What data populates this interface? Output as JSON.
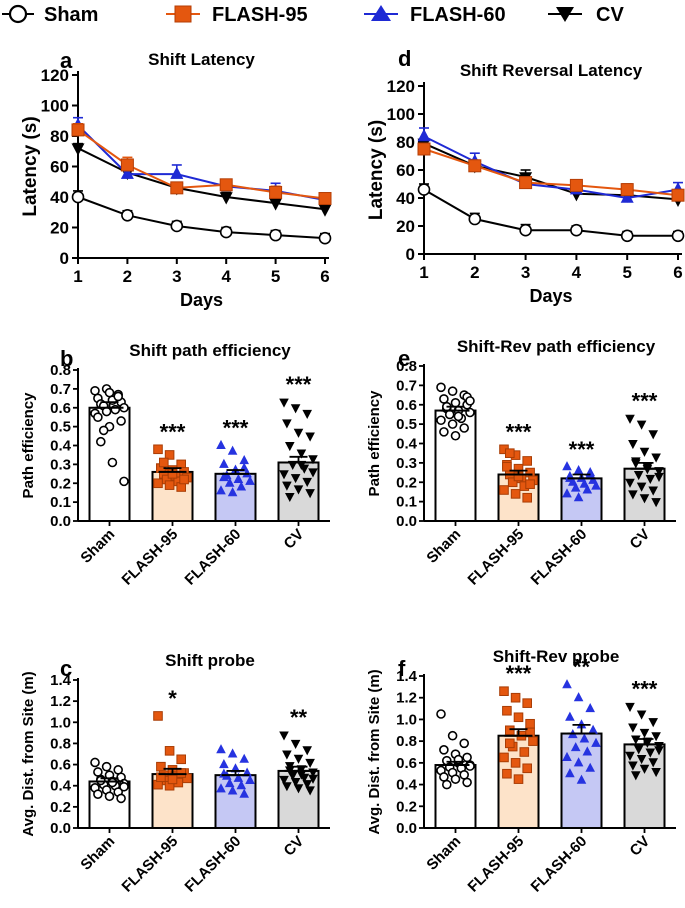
{
  "legend": [
    {
      "name": "Sham",
      "color": "#000000",
      "fill": "#ffffff",
      "marker": "circle"
    },
    {
      "name": "FLASH-95",
      "color": "#e4570f",
      "fill": "#e4570f",
      "marker": "square"
    },
    {
      "name": "FLASH-60",
      "color": "#1f2ad4",
      "fill": "#1f2ad4",
      "marker": "triangle"
    },
    {
      "name": "CV",
      "color": "#000000",
      "fill": "#000000",
      "marker": "triangle-down"
    }
  ],
  "chart_data": [
    {
      "panel": "a",
      "type": "line",
      "title": "Shift Latency",
      "xlabel": "Days",
      "ylabel": "Latency (s)",
      "x": [
        1,
        2,
        3,
        4,
        5,
        6
      ],
      "xlim": [
        1,
        6
      ],
      "ylim": [
        0,
        120
      ],
      "yticks": [
        0,
        20,
        40,
        60,
        80,
        100,
        120
      ],
      "series": [
        {
          "name": "Sham",
          "values": [
            40,
            28,
            21,
            17,
            15,
            13
          ],
          "err": [
            4,
            3,
            3,
            3,
            3,
            3
          ]
        },
        {
          "name": "FLASH-95",
          "values": [
            84,
            61,
            46,
            48,
            43,
            39
          ],
          "err": [
            4,
            5,
            3,
            3,
            4,
            3
          ]
        },
        {
          "name": "FLASH-60",
          "values": [
            87,
            55,
            55,
            47,
            44,
            38
          ],
          "err": [
            5,
            3,
            6,
            4,
            5,
            3
          ]
        },
        {
          "name": "CV",
          "values": [
            72,
            56,
            46,
            40,
            36,
            32
          ],
          "err": [
            3,
            3,
            3,
            3,
            3,
            3
          ]
        }
      ]
    },
    {
      "panel": "d",
      "type": "line",
      "title": "Shift Reversal Latency",
      "xlabel": "Days",
      "ylabel": "Latency (s)",
      "x": [
        1,
        2,
        3,
        4,
        5,
        6
      ],
      "xlim": [
        1,
        6
      ],
      "ylim": [
        0,
        120
      ],
      "yticks": [
        0,
        20,
        40,
        60,
        80,
        100,
        120
      ],
      "series": [
        {
          "name": "Sham",
          "values": [
            46,
            25,
            17,
            17,
            13,
            13
          ],
          "err": [
            4,
            4,
            4,
            3,
            3,
            3
          ]
        },
        {
          "name": "FLASH-95",
          "values": [
            75,
            63,
            51,
            49,
            46,
            42
          ],
          "err": [
            3,
            4,
            4,
            4,
            4,
            3
          ]
        },
        {
          "name": "FLASH-60",
          "values": [
            84,
            66,
            50,
            46,
            40,
            46
          ],
          "err": [
            6,
            6,
            5,
            4,
            4,
            5
          ]
        },
        {
          "name": "CV",
          "values": [
            79,
            63,
            55,
            43,
            42,
            39
          ],
          "err": [
            3,
            3,
            5,
            3,
            3,
            3
          ]
        }
      ]
    },
    {
      "panel": "b",
      "type": "bar",
      "title": "Shift path efficiency",
      "ylabel": "Path efficiency",
      "ylim": [
        0,
        0.8
      ],
      "yticks": [
        0,
        0.1,
        0.2,
        0.3,
        0.4,
        0.5,
        0.6,
        0.7,
        0.8
      ],
      "categories": [
        "Sham",
        "FLASH-95",
        "FLASH-60",
        "CV"
      ],
      "values": [
        0.6,
        0.26,
        0.25,
        0.31
      ],
      "err": [
        0.03,
        0.02,
        0.02,
        0.03
      ],
      "significance": [
        "",
        "***",
        "***",
        "***"
      ],
      "points": [
        [
          0.69,
          0.7,
          0.67,
          0.65,
          0.68,
          0.63,
          0.62,
          0.64,
          0.6,
          0.61,
          0.59,
          0.57,
          0.58,
          0.66,
          0.55,
          0.5,
          0.53,
          0.42,
          0.31,
          0.21,
          0.48
        ],
        [
          0.38,
          0.35,
          0.3,
          0.28,
          0.27,
          0.26,
          0.25,
          0.24,
          0.23,
          0.22,
          0.21,
          0.2,
          0.19,
          0.18,
          0.28,
          0.25,
          0.22,
          0.31
        ],
        [
          0.4,
          0.37,
          0.32,
          0.3,
          0.27,
          0.25,
          0.24,
          0.22,
          0.21,
          0.2,
          0.18,
          0.16,
          0.15,
          0.28,
          0.23
        ],
        [
          0.63,
          0.6,
          0.57,
          0.52,
          0.47,
          0.45,
          0.4,
          0.36,
          0.33,
          0.3,
          0.28,
          0.25,
          0.23,
          0.21,
          0.19,
          0.17,
          0.15,
          0.13,
          0.3,
          0.26
        ]
      ]
    },
    {
      "panel": "e",
      "type": "bar",
      "title": "Shift-Rev path efficiency",
      "ylabel": "Path efficiency",
      "ylim": [
        0,
        0.8
      ],
      "yticks": [
        0,
        0.1,
        0.2,
        0.3,
        0.4,
        0.5,
        0.6,
        0.7,
        0.8
      ],
      "categories": [
        "Sham",
        "FLASH-95",
        "FLASH-60",
        "CV"
      ],
      "values": [
        0.57,
        0.24,
        0.22,
        0.27
      ],
      "err": [
        0.02,
        0.02,
        0.02,
        0.03
      ],
      "significance": [
        "",
        "***",
        "***",
        "***"
      ],
      "points": [
        [
          0.69,
          0.67,
          0.65,
          0.63,
          0.61,
          0.6,
          0.58,
          0.57,
          0.56,
          0.55,
          0.53,
          0.52,
          0.5,
          0.48,
          0.46,
          0.44,
          0.64,
          0.59,
          0.54,
          0.62
        ],
        [
          0.37,
          0.34,
          0.31,
          0.29,
          0.27,
          0.25,
          0.24,
          0.22,
          0.21,
          0.2,
          0.18,
          0.16,
          0.14,
          0.12,
          0.28,
          0.23,
          0.19,
          0.35
        ],
        [
          0.28,
          0.26,
          0.24,
          0.23,
          0.22,
          0.21,
          0.2,
          0.19,
          0.18,
          0.17,
          0.16,
          0.14,
          0.12,
          0.25,
          0.22
        ],
        [
          0.53,
          0.5,
          0.45,
          0.4,
          0.36,
          0.33,
          0.3,
          0.28,
          0.26,
          0.24,
          0.22,
          0.2,
          0.18,
          0.16,
          0.14,
          0.12,
          0.1,
          0.31,
          0.27,
          0.23
        ]
      ]
    },
    {
      "panel": "c",
      "type": "bar",
      "title": "Shift probe",
      "ylabel": "Avg. Dist. from Site (m)",
      "ylim": [
        0,
        1.4
      ],
      "yticks": [
        0,
        0.2,
        0.4,
        0.6,
        0.8,
        1.0,
        1.2,
        1.4
      ],
      "categories": [
        "Sham",
        "FLASH-95",
        "FLASH-60",
        "CV"
      ],
      "values": [
        0.44,
        0.51,
        0.5,
        0.54
      ],
      "err": [
        0.03,
        0.05,
        0.04,
        0.04
      ],
      "significance": [
        "",
        "*",
        "",
        "**"
      ],
      "points": [
        [
          0.62,
          0.58,
          0.55,
          0.53,
          0.5,
          0.48,
          0.46,
          0.44,
          0.42,
          0.41,
          0.4,
          0.38,
          0.36,
          0.34,
          0.32,
          0.3,
          0.28,
          0.45,
          0.43,
          0.39
        ],
        [
          1.06,
          0.73,
          0.65,
          0.58,
          0.55,
          0.52,
          0.5,
          0.49,
          0.47,
          0.45,
          0.43,
          0.41,
          0.4,
          0.52,
          0.48,
          0.46
        ],
        [
          0.74,
          0.7,
          0.65,
          0.6,
          0.56,
          0.52,
          0.49,
          0.47,
          0.45,
          0.42,
          0.4,
          0.37,
          0.35,
          0.32,
          0.51
        ],
        [
          0.88,
          0.8,
          0.74,
          0.7,
          0.66,
          0.62,
          0.59,
          0.56,
          0.53,
          0.5,
          0.48,
          0.46,
          0.44,
          0.42,
          0.4,
          0.38,
          0.36,
          0.55,
          0.51,
          0.47
        ]
      ]
    },
    {
      "panel": "f",
      "type": "bar",
      "title": "Shift-Rev probe",
      "ylabel": "Avg. Dist. from Site (m)",
      "ylim": [
        0,
        1.4
      ],
      "yticks": [
        0,
        0.2,
        0.4,
        0.6,
        0.8,
        1.0,
        1.2,
        1.4
      ],
      "categories": [
        "Sham",
        "FLASH-95",
        "FLASH-60",
        "CV"
      ],
      "values": [
        0.58,
        0.85,
        0.87,
        0.77
      ],
      "err": [
        0.03,
        0.06,
        0.08,
        0.05
      ],
      "significance": [
        "",
        "***",
        "**",
        "***"
      ],
      "points": [
        [
          1.05,
          0.85,
          0.78,
          0.72,
          0.68,
          0.65,
          0.62,
          0.6,
          0.58,
          0.56,
          0.55,
          0.53,
          0.51,
          0.49,
          0.47,
          0.45,
          0.42,
          0.4,
          0.63,
          0.57
        ],
        [
          1.26,
          1.2,
          1.15,
          1.08,
          1.02,
          0.96,
          0.9,
          0.85,
          0.8,
          0.75,
          0.7,
          0.65,
          0.6,
          0.55,
          0.5,
          0.45,
          0.88,
          0.78
        ],
        [
          1.32,
          1.2,
          1.1,
          1.02,
          0.95,
          0.9,
          0.86,
          0.82,
          0.78,
          0.74,
          0.7,
          0.65,
          0.6,
          0.55,
          0.5,
          0.44
        ],
        [
          1.12,
          1.05,
          0.98,
          0.93,
          0.88,
          0.85,
          0.82,
          0.79,
          0.76,
          0.73,
          0.7,
          0.67,
          0.64,
          0.61,
          0.58,
          0.55,
          0.52,
          0.49,
          0.8,
          0.72
        ]
      ]
    }
  ]
}
